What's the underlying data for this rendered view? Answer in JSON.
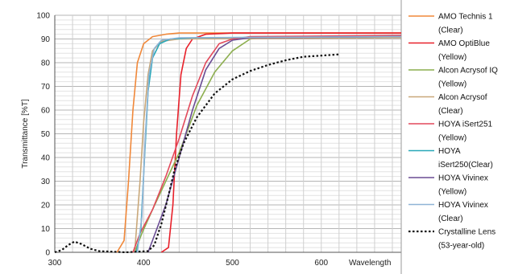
{
  "chart_data": {
    "type": "line",
    "xlabel": "Wavelength",
    "ylabel": "Transmittance [%T]",
    "xlim": [
      300,
      690
    ],
    "ylim": [
      0,
      100
    ],
    "x_ticks": [
      "300",
      "400",
      "500",
      "600"
    ],
    "y_ticks": [
      "0",
      "10",
      "20",
      "30",
      "40",
      "50",
      "60",
      "70",
      "80",
      "90",
      "100"
    ],
    "grid": true,
    "legend": "right",
    "series": [
      {
        "name": "AMO Technis 1",
        "subtitle": "(Clear)",
        "color": "#f0883a",
        "dash": false,
        "points": [
          [
            370,
            0
          ],
          [
            378,
            5
          ],
          [
            383,
            30
          ],
          [
            388,
            60
          ],
          [
            393,
            80
          ],
          [
            400,
            88
          ],
          [
            410,
            91
          ],
          [
            425,
            92
          ],
          [
            440,
            92.5
          ],
          [
            690,
            92.5
          ]
        ]
      },
      {
        "name": "AMO OptiBlue",
        "subtitle": "(Yellow)",
        "color": "#e8202a",
        "dash": false,
        "points": [
          [
            420,
            0
          ],
          [
            428,
            2
          ],
          [
            433,
            20
          ],
          [
            437,
            50
          ],
          [
            442,
            75
          ],
          [
            448,
            86
          ],
          [
            455,
            90
          ],
          [
            470,
            92
          ],
          [
            500,
            92.5
          ],
          [
            690,
            92.5
          ]
        ]
      },
      {
        "name": "Alcon Acrysof IQ",
        "subtitle": "(Yellow)",
        "color": "#8cae4e",
        "dash": false,
        "points": [
          [
            390,
            0
          ],
          [
            398,
            8
          ],
          [
            410,
            18
          ],
          [
            425,
            30
          ],
          [
            440,
            42
          ],
          [
            460,
            62
          ],
          [
            480,
            76
          ],
          [
            500,
            85
          ],
          [
            520,
            90
          ],
          [
            550,
            91
          ],
          [
            690,
            91
          ]
        ]
      },
      {
        "name": "Alcon Acrysof",
        "subtitle": "(Clear)",
        "color": "#c9a87a",
        "dash": false,
        "points": [
          [
            390,
            0
          ],
          [
            396,
            30
          ],
          [
            400,
            55
          ],
          [
            405,
            75
          ],
          [
            410,
            85
          ],
          [
            420,
            89
          ],
          [
            440,
            90
          ],
          [
            690,
            90.5
          ]
        ]
      },
      {
        "name": "HOYA iSert251",
        "subtitle": "(Yellow)",
        "color": "#e2495b",
        "dash": false,
        "points": [
          [
            388,
            0
          ],
          [
            396,
            8
          ],
          [
            410,
            18
          ],
          [
            425,
            32
          ],
          [
            440,
            48
          ],
          [
            455,
            66
          ],
          [
            470,
            80
          ],
          [
            485,
            88
          ],
          [
            500,
            90
          ],
          [
            520,
            91
          ],
          [
            690,
            91.5
          ]
        ]
      },
      {
        "name": "HOYA",
        "subtitle": "iSert250(Clear)",
        "color": "#27a7b8",
        "dash": false,
        "points": [
          [
            392,
            0
          ],
          [
            397,
            10
          ],
          [
            401,
            40
          ],
          [
            405,
            68
          ],
          [
            410,
            82
          ],
          [
            418,
            88
          ],
          [
            430,
            90
          ],
          [
            460,
            90.5
          ],
          [
            690,
            91
          ]
        ]
      },
      {
        "name": "HOYA Vivinex",
        "subtitle": "(Yellow)",
        "color": "#6a4c93",
        "dash": false,
        "points": [
          [
            405,
            0
          ],
          [
            413,
            8
          ],
          [
            425,
            20
          ],
          [
            440,
            40
          ],
          [
            455,
            60
          ],
          [
            470,
            77
          ],
          [
            485,
            86
          ],
          [
            500,
            89.5
          ],
          [
            520,
            90.5
          ],
          [
            690,
            91
          ]
        ]
      },
      {
        "name": "HOYA Vivinex",
        "subtitle": "(Clear)",
        "color": "#8fb4d6",
        "dash": false,
        "points": [
          [
            393,
            0
          ],
          [
            398,
            15
          ],
          [
            402,
            50
          ],
          [
            406,
            75
          ],
          [
            412,
            86
          ],
          [
            420,
            89.5
          ],
          [
            440,
            90.5
          ],
          [
            690,
            91
          ]
        ]
      },
      {
        "name": "Crystalline Lens",
        "subtitle": "(53-year-old)",
        "color": "#111111",
        "dash": true,
        "points": [
          [
            300,
            0
          ],
          [
            308,
            1
          ],
          [
            315,
            3
          ],
          [
            322,
            4.5
          ],
          [
            330,
            3.5
          ],
          [
            340,
            1.5
          ],
          [
            350,
            0.5
          ],
          [
            380,
            0
          ],
          [
            405,
            0.5
          ],
          [
            412,
            3
          ],
          [
            420,
            12
          ],
          [
            428,
            24
          ],
          [
            435,
            35
          ],
          [
            445,
            46
          ],
          [
            460,
            57
          ],
          [
            480,
            67
          ],
          [
            500,
            73
          ],
          [
            520,
            76.5
          ],
          [
            540,
            79
          ],
          [
            560,
            81
          ],
          [
            580,
            82.5
          ],
          [
            600,
            83
          ],
          [
            620,
            83.5
          ]
        ]
      }
    ]
  }
}
